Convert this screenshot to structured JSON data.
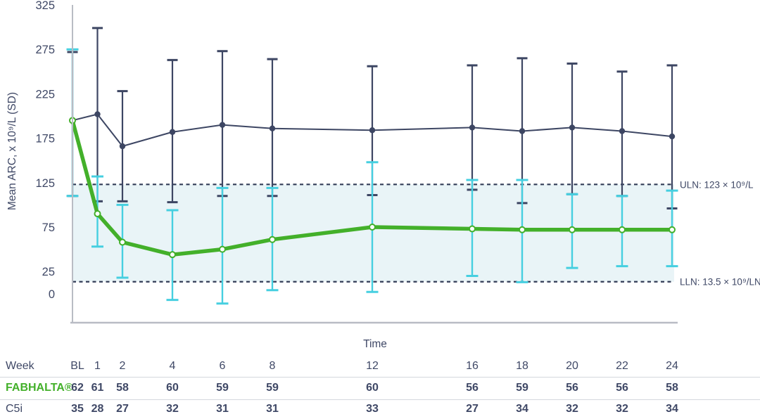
{
  "colors": {
    "fabhalta_green": "#43b02a",
    "error_cyan": "#46cfe0",
    "c5i_navy": "#3d4663",
    "band_fill": "#e9f4f7",
    "dashed_line": "#333d57",
    "axis_gray": "#b9bcc4",
    "text_navy": "#3f4866",
    "divider_gray": "#d4d7dd",
    "marker_fill_white": "#ffffff"
  },
  "chart_data": {
    "type": "line",
    "title": "",
    "xlabel": "Time",
    "ylabel": "Mean ARC, x 10⁹/L (SD)",
    "y_ticks": [
      325,
      275,
      225,
      175,
      125,
      75,
      25,
      0
    ],
    "ylim": [
      -33,
      325
    ],
    "grid": false,
    "legend_position": "none",
    "x_categories": [
      "BL",
      "1",
      "2",
      "4",
      "6",
      "8",
      "12",
      "16",
      "18",
      "20",
      "22",
      "24"
    ],
    "x_weeks": [
      0,
      1,
      2,
      4,
      6,
      8,
      12,
      16,
      18,
      20,
      22,
      24
    ],
    "reference_lines": [
      {
        "name": "ULN",
        "value": 123,
        "label": "ULN: 123 × 10⁹/L"
      },
      {
        "name": "LLN",
        "value": 13.5,
        "label": "LLN: 13.5 × 10⁹/LN"
      }
    ],
    "shaded_band": {
      "from": 13.5,
      "to": 123
    },
    "series": [
      {
        "name": "C5i",
        "values": [
          195,
          202,
          166,
          182,
          190,
          186,
          184,
          187,
          183,
          187,
          183,
          177
        ],
        "err_low": [
          110,
          104,
          104,
          103,
          110,
          110,
          111,
          117,
          102,
          112,
          110,
          96
        ],
        "err_high": [
          272,
          299,
          228,
          263,
          273,
          264,
          256,
          257,
          265,
          259,
          250,
          257
        ]
      },
      {
        "name": "FABHALTA®",
        "values": [
          195,
          90,
          58,
          44,
          50,
          61,
          75,
          73,
          72,
          72,
          72,
          72
        ],
        "err_low": [
          110,
          53,
          18,
          -7,
          -11,
          4,
          2,
          20,
          13,
          29,
          31,
          31
        ],
        "err_high": [
          275,
          132,
          100,
          94,
          119,
          119,
          148,
          128,
          128,
          112,
          110,
          116
        ]
      }
    ]
  },
  "table": {
    "week_row_label": "Week",
    "week_values": [
      "BL",
      "1",
      "2",
      "4",
      "6",
      "8",
      "12",
      "16",
      "18",
      "20",
      "22",
      "24"
    ],
    "fabhalta_row_label": "FABHALTA®",
    "fabhalta_values": [
      "62",
      "61",
      "58",
      "60",
      "59",
      "59",
      "60",
      "56",
      "59",
      "56",
      "56",
      "58"
    ],
    "c5i_row_label": "C5i",
    "c5i_values": [
      "35",
      "28",
      "27",
      "32",
      "31",
      "31",
      "33",
      "27",
      "34",
      "32",
      "32",
      "34"
    ]
  }
}
